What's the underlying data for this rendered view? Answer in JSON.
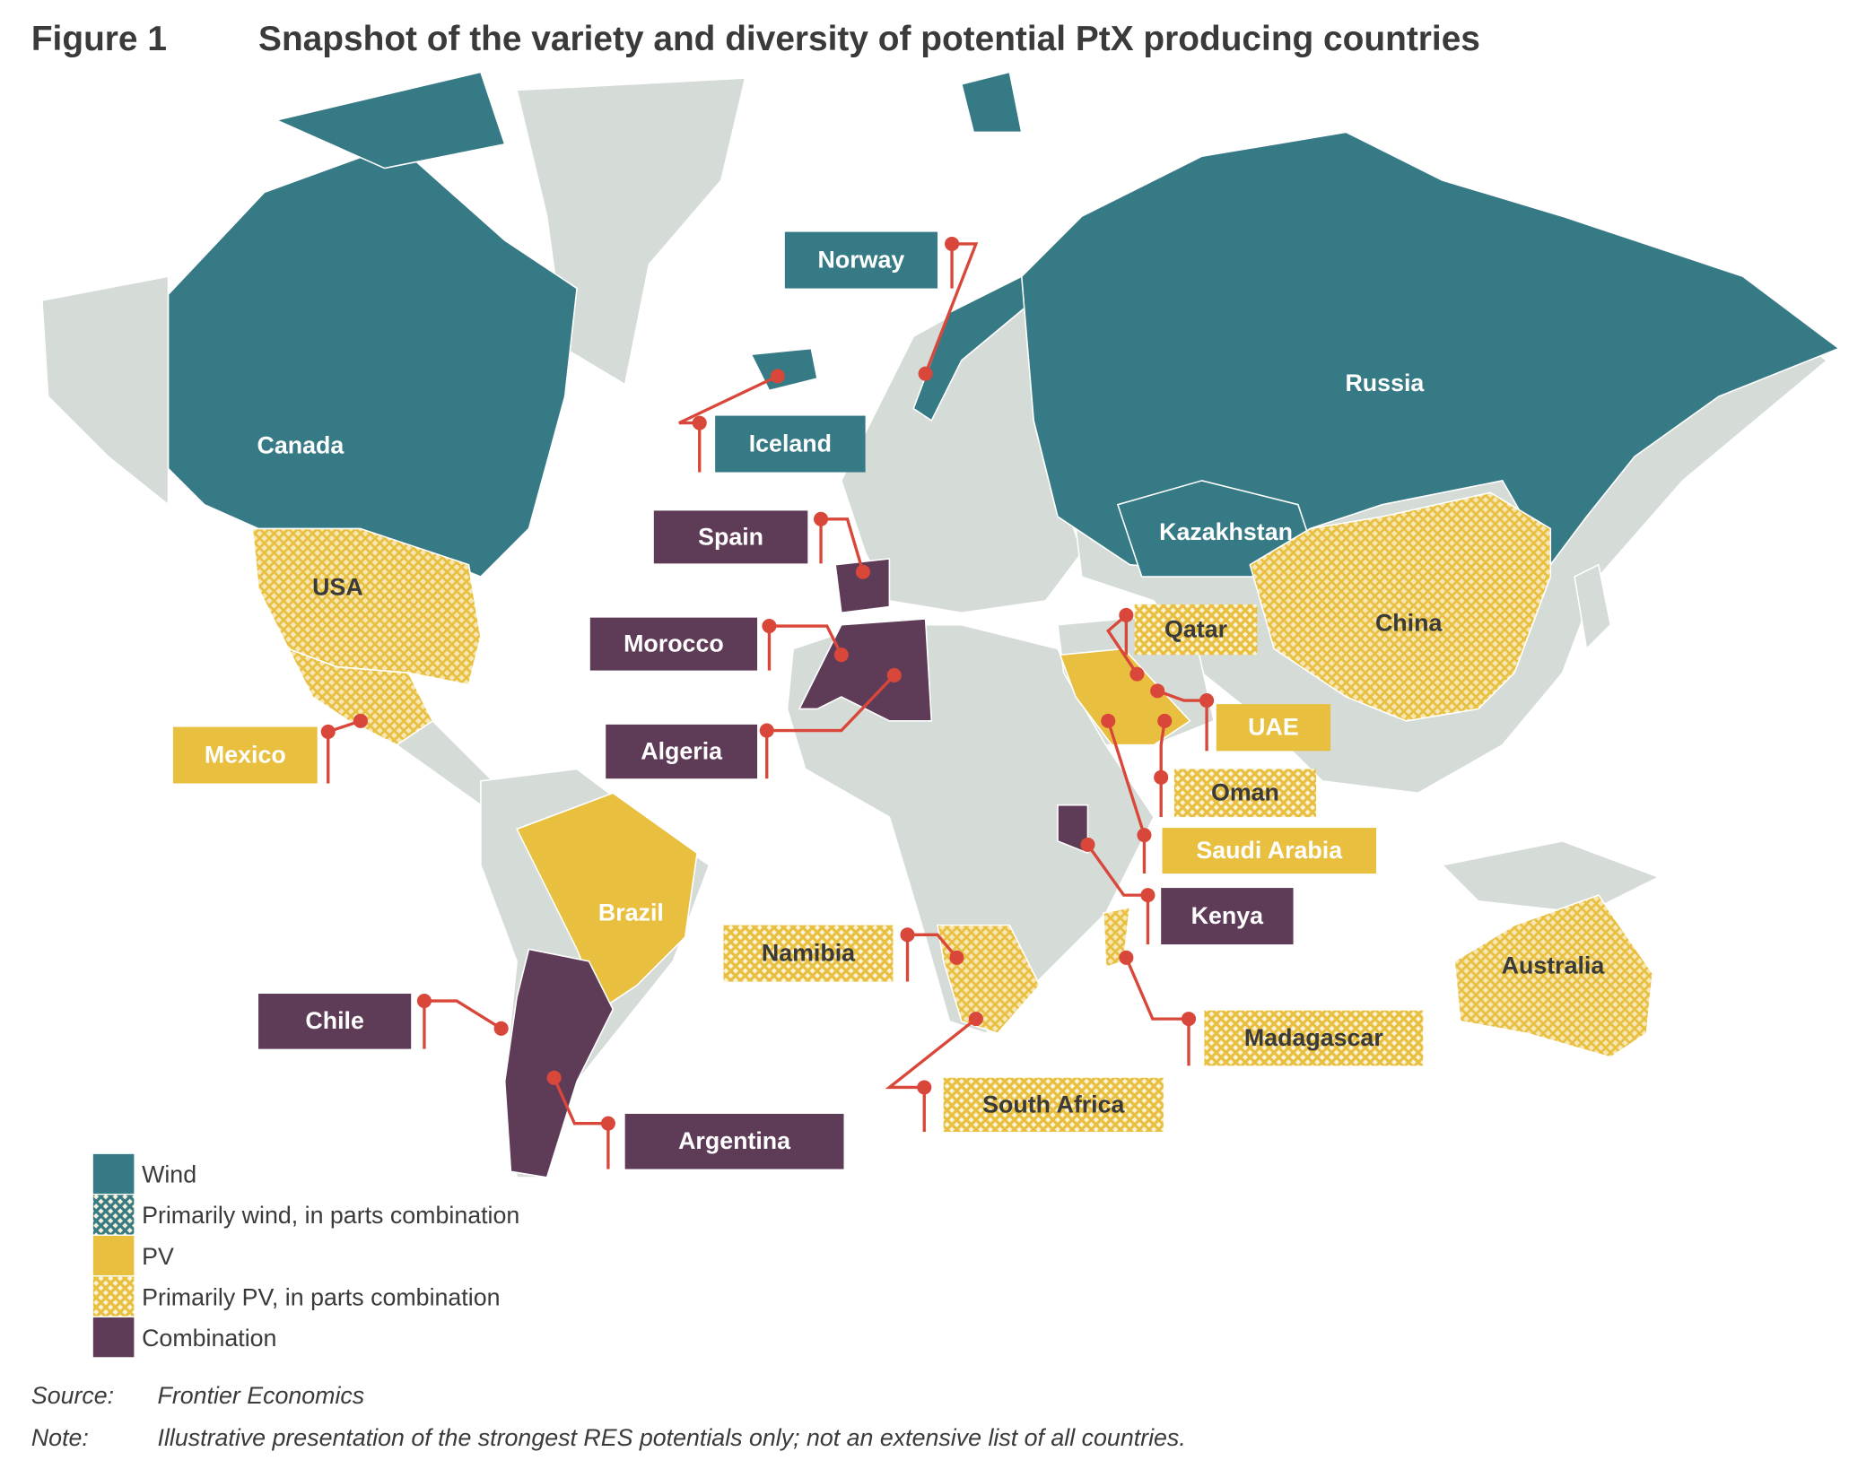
{
  "figure": {
    "label": "Figure 1",
    "title": "Snapshot of the variety and diversity of potential PtX producing countries"
  },
  "countries": [
    {
      "name": "Norway",
      "box_color": "#367a85",
      "hatched": false,
      "text_color": "#ffffff"
    },
    {
      "name": "Iceland",
      "box_color": "#367a85",
      "hatched": false,
      "text_color": "#ffffff"
    },
    {
      "name": "Canada",
      "text_color": "#ffffff"
    },
    {
      "name": "Russia",
      "text_color": "#ffffff"
    },
    {
      "name": "Kazakhstan",
      "text_color": "#ffffff"
    },
    {
      "name": "USA",
      "text_color": "#3a3a3a"
    },
    {
      "name": "China",
      "text_color": "#3a3a3a"
    },
    {
      "name": "Brazil",
      "text_color": "#ffffff"
    },
    {
      "name": "Australia",
      "text_color": "#3a3a3a"
    },
    {
      "name": "Spain",
      "box_color": "#5e3b56",
      "hatched": false,
      "text_color": "#ffffff"
    },
    {
      "name": "Morocco",
      "box_color": "#5e3b56",
      "hatched": false,
      "text_color": "#ffffff"
    },
    {
      "name": "Algeria",
      "box_color": "#5e3b56",
      "hatched": false,
      "text_color": "#ffffff"
    },
    {
      "name": "Mexico",
      "box_color": "#e8bf3f",
      "hatched": false,
      "text_color": "#ffffff"
    },
    {
      "name": "Qatar",
      "box_color": "#e8bf3f",
      "hatched": true,
      "text_color": "#3a3a3a"
    },
    {
      "name": "UAE",
      "box_color": "#e8bf3f",
      "hatched": false,
      "text_color": "#ffffff"
    },
    {
      "name": "Oman",
      "box_color": "#e8bf3f",
      "hatched": true,
      "text_color": "#3a3a3a"
    },
    {
      "name": "Saudi Arabia",
      "box_color": "#e8bf3f",
      "hatched": false,
      "text_color": "#ffffff"
    },
    {
      "name": "Kenya",
      "box_color": "#5e3b56",
      "hatched": false,
      "text_color": "#ffffff"
    },
    {
      "name": "Namibia",
      "box_color": "#e8bf3f",
      "hatched": true,
      "text_color": "#3a3a3a"
    },
    {
      "name": "South Africa",
      "box_color": "#e8bf3f",
      "hatched": true,
      "text_color": "#3a3a3a"
    },
    {
      "name": "Madagascar",
      "box_color": "#e8bf3f",
      "hatched": true,
      "text_color": "#3a3a3a"
    },
    {
      "name": "Chile",
      "box_color": "#5e3b56",
      "hatched": false,
      "text_color": "#ffffff"
    },
    {
      "name": "Argentina",
      "box_color": "#5e3b56",
      "hatched": false,
      "text_color": "#ffffff"
    }
  ],
  "legend": [
    {
      "label": "Wind",
      "color": "#367a85",
      "hatched": false
    },
    {
      "label": "Primarily wind, in parts combination",
      "color": "#367a85",
      "hatched": true
    },
    {
      "label": "PV",
      "color": "#e8bf3f",
      "hatched": false
    },
    {
      "label": "Primarily PV, in parts combination",
      "color": "#e8bf3f",
      "hatched": true
    },
    {
      "label": "Combination",
      "color": "#5e3b56",
      "hatched": false
    }
  ],
  "source": {
    "label": "Source:",
    "text": "Frontier Economics"
  },
  "note": {
    "label": "Note:",
    "text": "Illustrative presentation of the strongest RES potentials only; not an extensive list of all countries."
  }
}
